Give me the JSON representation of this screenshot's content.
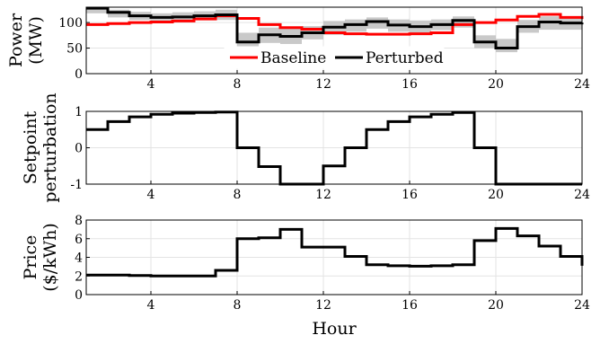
{
  "chart_data": [
    {
      "type": "line",
      "ylabel": [
        "Power",
        "(MW)"
      ],
      "xlabel": "",
      "xlim": [
        1,
        24
      ],
      "ylim": [
        0,
        130
      ],
      "xticks": [
        4,
        8,
        12,
        16,
        20,
        24
      ],
      "yticks": [
        0,
        50,
        100
      ],
      "grid": true,
      "step": true,
      "legend": {
        "placement": "bottom-center"
      },
      "series": [
        {
          "name": "Baseline",
          "color": "#ff0000",
          "x": [
            1,
            2,
            3,
            4,
            5,
            6,
            7,
            8,
            9,
            10,
            11,
            12,
            13,
            14,
            15,
            16,
            17,
            18,
            19,
            20,
            21,
            22,
            23,
            24
          ],
          "values": [
            96,
            98,
            100,
            101,
            103,
            107,
            113,
            108,
            96,
            90,
            87,
            80,
            78,
            77,
            77,
            78,
            80,
            96,
            100,
            105,
            112,
            116,
            110,
            107
          ]
        },
        {
          "name": "Perturbed",
          "color": "#000000",
          "x": [
            1,
            2,
            3,
            4,
            5,
            6,
            7,
            8,
            9,
            10,
            11,
            12,
            13,
            14,
            15,
            16,
            17,
            18,
            19,
            20,
            21,
            22,
            23,
            24
          ],
          "values": [
            128,
            120,
            113,
            110,
            111,
            113,
            115,
            62,
            76,
            73,
            80,
            91,
            96,
            102,
            95,
            92,
            96,
            104,
            62,
            50,
            92,
            101,
            99,
            100
          ]
        }
      ],
      "scenario_band": {
        "color": "#c0c0c0",
        "x": [
          1,
          2,
          3,
          4,
          5,
          6,
          7,
          8,
          9,
          10,
          11,
          12,
          13,
          14,
          15,
          16,
          17,
          18,
          19,
          20,
          21,
          22,
          23,
          24
        ],
        "low": [
          118,
          110,
          105,
          100,
          103,
          106,
          105,
          48,
          60,
          58,
          67,
          76,
          82,
          88,
          82,
          80,
          85,
          90,
          50,
          42,
          80,
          86,
          86,
          88
        ],
        "high": [
          132,
          125,
          121,
          118,
          120,
          122,
          125,
          80,
          90,
          88,
          93,
          103,
          106,
          110,
          106,
          104,
          106,
          112,
          75,
          68,
          105,
          112,
          112,
          110
        ]
      }
    },
    {
      "type": "line",
      "ylabel": [
        "Setpoint",
        "perturbation"
      ],
      "xlabel": "",
      "xlim": [
        1,
        24
      ],
      "ylim": [
        -1,
        1
      ],
      "xticks": [
        4,
        8,
        12,
        16,
        20,
        24
      ],
      "yticks": [
        -1,
        0,
        1
      ],
      "grid": true,
      "step": true,
      "series": [
        {
          "name": "",
          "color": "#000000",
          "x": [
            1,
            2,
            3,
            4,
            5,
            6,
            7,
            8,
            9,
            10,
            11,
            12,
            13,
            14,
            15,
            16,
            17,
            18,
            19,
            20,
            21,
            22,
            23,
            24
          ],
          "values": [
            0.5,
            0.72,
            0.85,
            0.92,
            0.95,
            0.97,
            0.98,
            0,
            -0.52,
            -1,
            -1,
            -0.5,
            0,
            0.5,
            0.72,
            0.85,
            0.92,
            0.97,
            0,
            -1,
            -1,
            -1,
            -1,
            -1
          ]
        }
      ]
    },
    {
      "type": "line",
      "ylabel": [
        "Price",
        "($/kWh)"
      ],
      "xlabel": "Hour",
      "xlim": [
        1,
        24
      ],
      "ylim": [
        0,
        8
      ],
      "xticks": [
        4,
        8,
        12,
        16,
        20,
        24
      ],
      "yticks": [
        0,
        2,
        4,
        6,
        8
      ],
      "grid": true,
      "step": true,
      "series": [
        {
          "name": "",
          "color": "#000000",
          "x": [
            1,
            2,
            3,
            4,
            5,
            6,
            7,
            8,
            9,
            10,
            11,
            12,
            13,
            14,
            15,
            16,
            17,
            18,
            19,
            20,
            21,
            22,
            23,
            24
          ],
          "values": [
            2.1,
            2.1,
            2.05,
            2.0,
            2.0,
            2.0,
            2.6,
            6.0,
            6.1,
            7.0,
            5.1,
            5.1,
            4.1,
            3.2,
            3.1,
            3.05,
            3.1,
            3.2,
            5.8,
            7.1,
            6.3,
            5.2,
            4.1,
            3.1
          ]
        }
      ]
    }
  ]
}
